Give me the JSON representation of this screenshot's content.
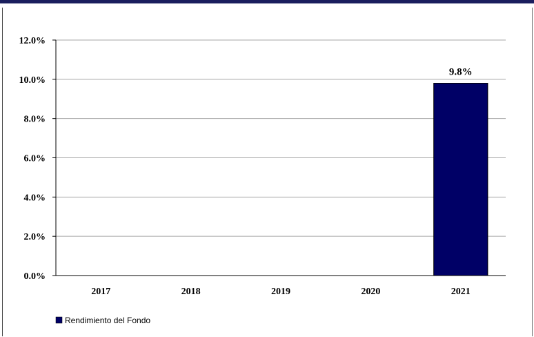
{
  "chart_data": {
    "type": "bar",
    "categories": [
      "2017",
      "2018",
      "2019",
      "2020",
      "2021"
    ],
    "series": [
      {
        "name": "Rendimiento del Fondo",
        "values": [
          null,
          null,
          null,
          null,
          9.8
        ],
        "color": "#000066"
      }
    ],
    "data_labels": [
      "",
      "",
      "",
      "",
      "9.8%"
    ],
    "y_ticks": [
      "0.0%",
      "2.0%",
      "4.0%",
      "6.0%",
      "8.0%",
      "10.0%",
      "12.0%"
    ],
    "ylim": [
      0,
      12
    ],
    "grid": true,
    "legend": "bottom-left"
  }
}
